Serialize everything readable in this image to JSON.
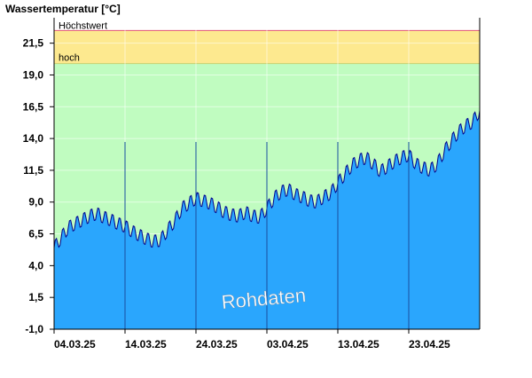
{
  "chart_data": {
    "type": "area",
    "title": "Wassertemperatur [°C]",
    "ylim": [
      -1.0,
      23.5
    ],
    "yticks": [
      "-1,0",
      "1,5",
      "4,0",
      "6,5",
      "9,0",
      "11,5",
      "14,0",
      "16,5",
      "19,0",
      "21,5"
    ],
    "ytick_values": [
      -1.0,
      1.5,
      4.0,
      6.5,
      9.0,
      11.5,
      14.0,
      16.5,
      19.0,
      21.5
    ],
    "xticks": [
      "04.03.25",
      "14.03.25",
      "24.03.25",
      "03.04.25",
      "13.04.25",
      "23.04.25"
    ],
    "xtick_days": [
      0,
      10,
      20,
      30,
      40,
      50
    ],
    "xlim_days": [
      0,
      60
    ],
    "grid": true,
    "zones": [
      {
        "name": "Höchstwert",
        "from": 19.9,
        "to": 22.5,
        "color": "#fde98f",
        "line_color": "#e0557a"
      },
      {
        "name": "hoch",
        "from": -1.0,
        "to": 19.9,
        "color": "#c0fcc0"
      }
    ],
    "annotation": "Rohdaten",
    "series": [
      {
        "color": "#2aa6fd",
        "line_color": "#00008b",
        "x": [
          0,
          1,
          2,
          3,
          4,
          5,
          6,
          7,
          8,
          9,
          10,
          11,
          12,
          13,
          14,
          15,
          16,
          17,
          18,
          19,
          20,
          21,
          22,
          23,
          24,
          25,
          26,
          27,
          28,
          29,
          30,
          31,
          32,
          33,
          34,
          35,
          36,
          37,
          38,
          39,
          40,
          41,
          42,
          43,
          44,
          45,
          46,
          47,
          48,
          49,
          50,
          51,
          52,
          53,
          54,
          55,
          56,
          57,
          58,
          59,
          60
        ],
        "values": [
          5.4,
          6.2,
          7.0,
          7.3,
          7.6,
          7.9,
          8.1,
          7.8,
          7.6,
          7.3,
          7.1,
          6.7,
          6.4,
          6.1,
          5.9,
          6.0,
          6.8,
          7.5,
          8.5,
          8.9,
          9.3,
          9.1,
          8.9,
          8.6,
          8.2,
          8.0,
          7.9,
          8.2,
          7.9,
          7.8,
          8.5,
          9.3,
          9.8,
          10.0,
          9.6,
          9.4,
          9.1,
          9.0,
          9.4,
          9.7,
          10.5,
          11.2,
          11.9,
          12.3,
          12.5,
          12.0,
          11.4,
          11.8,
          12.2,
          12.5,
          12.7,
          12.0,
          11.7,
          11.5,
          12.0,
          13.0,
          13.8,
          14.5,
          15.0,
          15.3,
          16.2
        ]
      }
    ]
  }
}
